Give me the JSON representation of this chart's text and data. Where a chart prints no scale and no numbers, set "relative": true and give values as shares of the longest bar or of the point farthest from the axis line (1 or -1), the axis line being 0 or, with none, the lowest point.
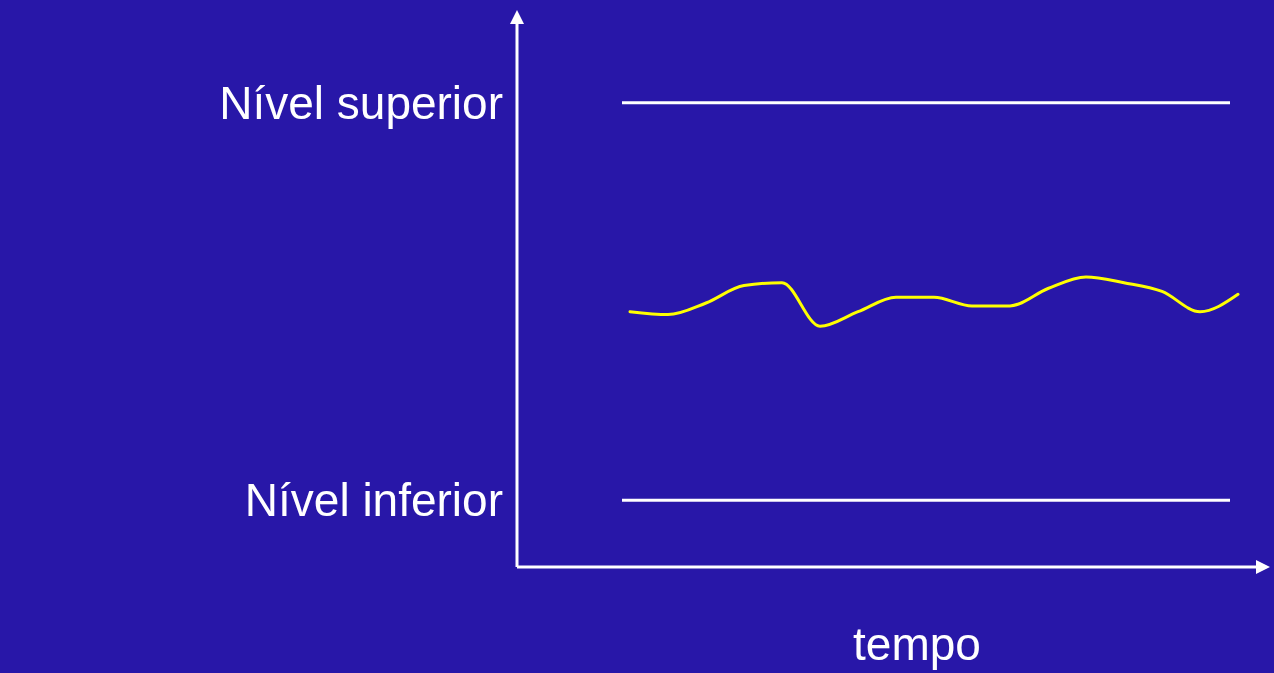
{
  "chart_data": {
    "type": "line",
    "xlabel": "tempo",
    "relative": true,
    "categories": [
      null,
      null,
      null,
      null,
      null,
      null,
      null,
      null,
      null,
      null,
      null,
      null,
      null,
      null,
      null,
      null,
      null
    ],
    "series": [
      {
        "color": "#ffff00",
        "values": [
          0.88,
          0.87,
          0.91,
          0.97,
          0.98,
          0.83,
          0.88,
          0.93,
          0.93,
          0.9,
          0.9,
          0.96,
          1.0,
          0.98,
          0.95,
          0.88,
          0.94
        ]
      }
    ],
    "ref_lines": [
      {
        "axis": "y",
        "value": 1.6,
        "label": "Nível superior",
        "color": "#ffffff"
      },
      {
        "axis": "y",
        "value": 0.23,
        "label": "Nível inferior",
        "color": "#ffffff"
      }
    ],
    "grid": false,
    "marker": "none",
    "line_style": "solid"
  }
}
